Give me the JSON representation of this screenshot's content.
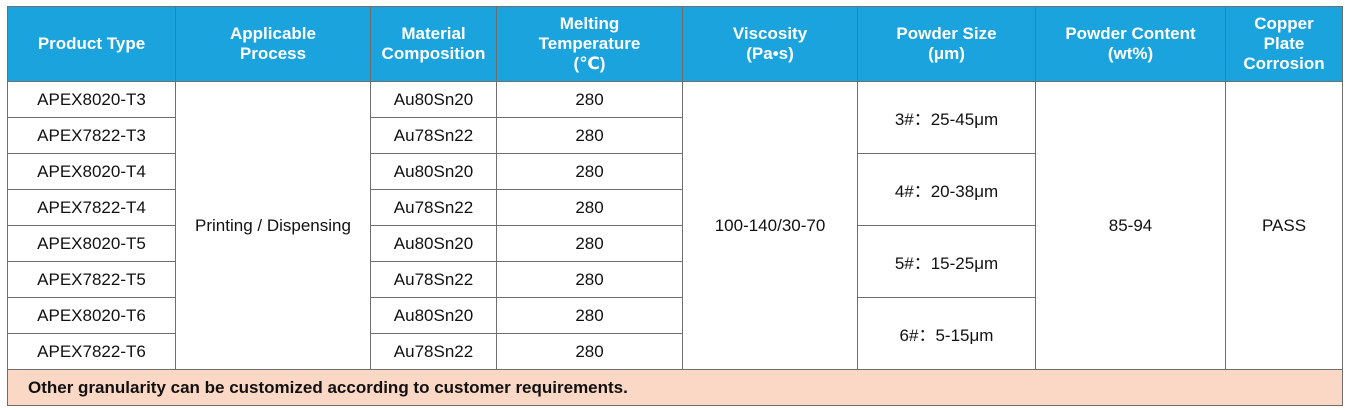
{
  "headers": [
    [
      "Product Type"
    ],
    [
      "Applicable",
      "Process"
    ],
    [
      "Material",
      "Composition"
    ],
    [
      "Melting",
      "Temperature",
      "(℃)"
    ],
    [
      "Viscosity",
      "(Pa•s)"
    ],
    [
      "Powder Size",
      "(μm)"
    ],
    [
      "Powder Content",
      "(wt%)"
    ],
    [
      "Copper",
      "Plate",
      "Corrosion"
    ]
  ],
  "rows": [
    {
      "product": "APEX8020-T3",
      "material": "Au80Sn20",
      "melting": "280"
    },
    {
      "product": "APEX7822-T3",
      "material": "Au78Sn22",
      "melting": "280"
    },
    {
      "product": "APEX8020-T4",
      "material": "Au80Sn20",
      "melting": "280"
    },
    {
      "product": "APEX7822-T4",
      "material": "Au78Sn22",
      "melting": "280"
    },
    {
      "product": "APEX8020-T5",
      "material": "Au80Sn20",
      "melting": "280"
    },
    {
      "product": "APEX7822-T5",
      "material": "Au78Sn22",
      "melting": "280"
    },
    {
      "product": "APEX8020-T6",
      "material": "Au80Sn20",
      "melting": "280"
    },
    {
      "product": "APEX7822-T6",
      "material": "Au78Sn22",
      "melting": "280"
    }
  ],
  "process": "Printing / Dispensing",
  "viscosity": "100-140/30-70",
  "powder_sizes": [
    "3#：25-45μm",
    "4#：20-38μm",
    "5#：15-25μm",
    "6#：5-15μm"
  ],
  "powder_content": "85-94",
  "corrosion": "PASS",
  "note": "Other granularity can be customized according to customer requirements."
}
